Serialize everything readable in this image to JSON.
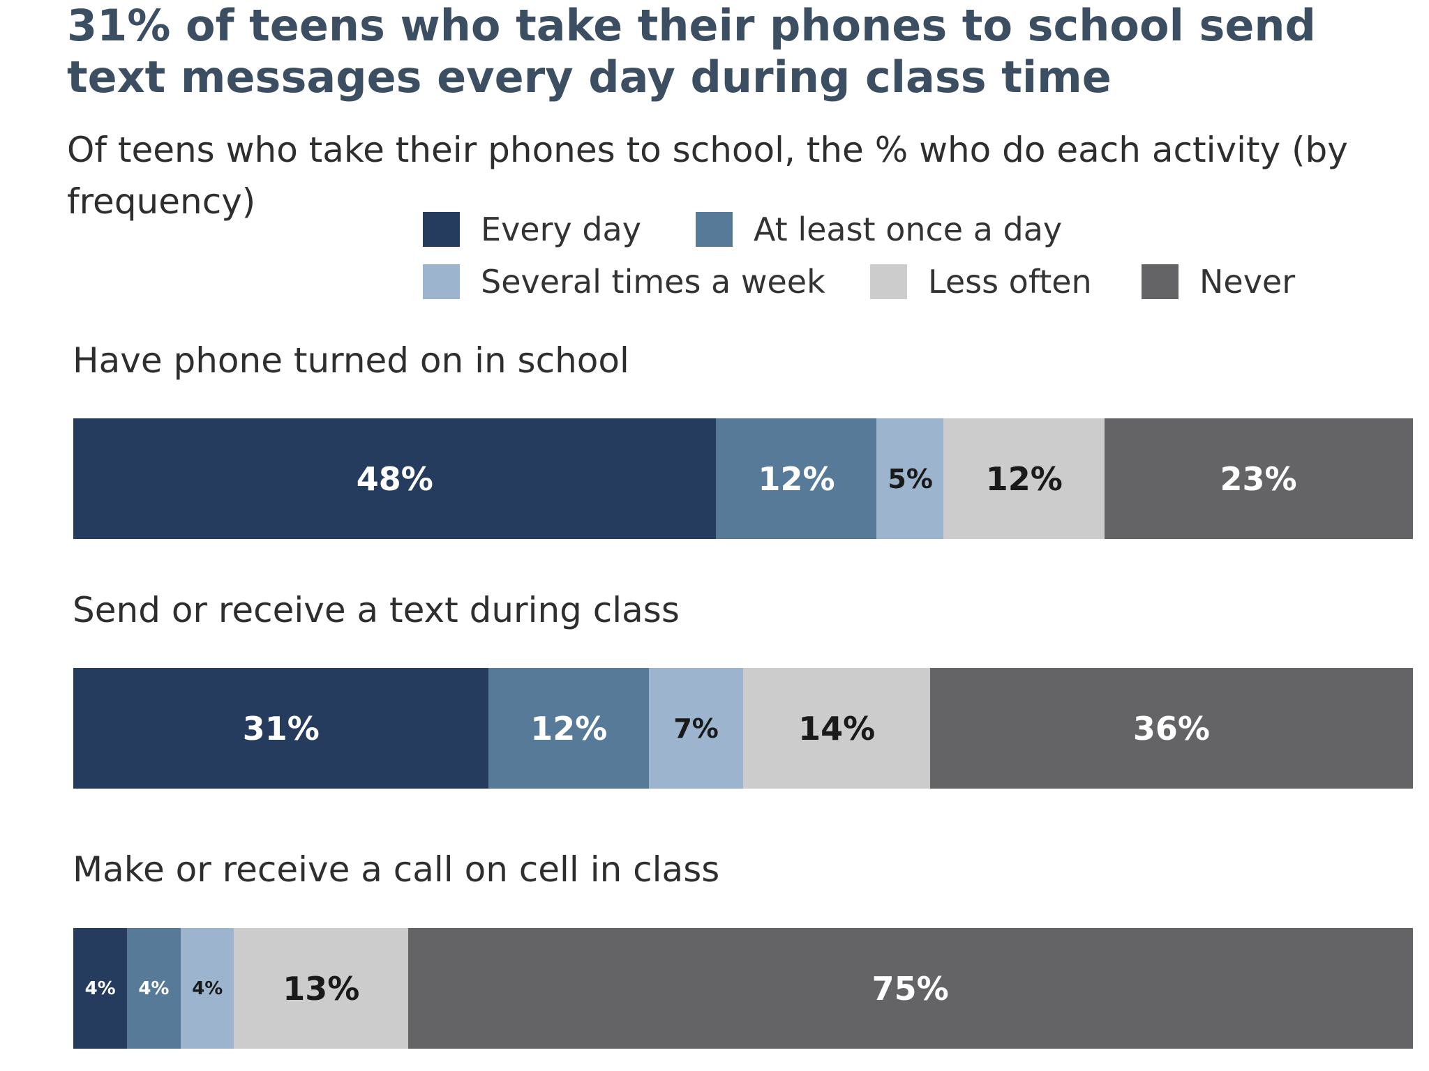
{
  "header": {
    "title": "31% of teens who take their phones to school send text messages every day during class time",
    "subtitle": "Of teens who take their phones to school, the % who do each activity (by frequency)"
  },
  "legend": {
    "items": [
      {
        "label": "Every day",
        "color": "#253c5e"
      },
      {
        "label": "At least once a day",
        "color": "#587a99"
      },
      {
        "label": "Several times a week",
        "color": "#9db4cf"
      },
      {
        "label": "Less often",
        "color": "#cccccc"
      },
      {
        "label": "Never",
        "color": "#646467"
      }
    ]
  },
  "chart_data": {
    "type": "bar",
    "orientation": "horizontal",
    "stacked": true,
    "title": "31% of teens who take their phones to school send text messages every day during class time",
    "subtitle": "Of teens who take their phones to school, the % who do each activity (by frequency)",
    "categories": [
      "Have phone turned on in school",
      "Send or receive a text during class",
      "Make or receive a call on cell in class"
    ],
    "series": [
      {
        "name": "Every day",
        "color": "#253c5e",
        "values": [
          48,
          31,
          4
        ]
      },
      {
        "name": "At least once a day",
        "color": "#587a99",
        "values": [
          12,
          12,
          4
        ]
      },
      {
        "name": "Several times a week",
        "color": "#9db4cf",
        "values": [
          5,
          7,
          4
        ]
      },
      {
        "name": "Less often",
        "color": "#cccccc",
        "values": [
          12,
          14,
          13
        ]
      },
      {
        "name": "Never",
        "color": "#646467",
        "values": [
          23,
          36,
          75
        ]
      }
    ],
    "xlim": [
      0,
      100
    ],
    "value_suffix": "%",
    "legend_position": "top",
    "grid": false
  }
}
